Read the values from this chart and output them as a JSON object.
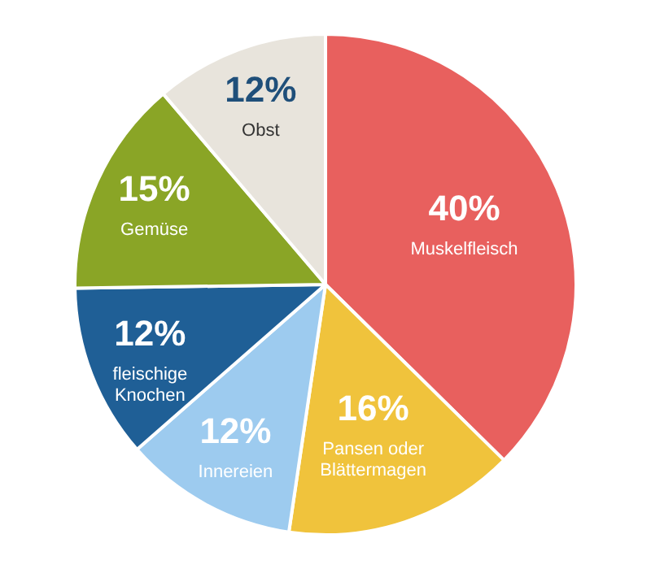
{
  "chart_data": {
    "type": "pie",
    "categories": [
      "Muskelfleisch",
      "Pansen oder Blättermagen",
      "Innereien",
      "fleischige Knochen",
      "Gemüse",
      "Obst"
    ],
    "values": [
      40,
      16,
      12,
      12,
      15,
      12
    ],
    "value_labels": [
      "40%",
      "16%",
      "12%",
      "12%",
      "15%",
      "12%"
    ],
    "colors": [
      "#e8605e",
      "#f0c33c",
      "#9dcbef",
      "#1f5f96",
      "#8aa526",
      "#e8e4dc"
    ],
    "legend": false
  }
}
